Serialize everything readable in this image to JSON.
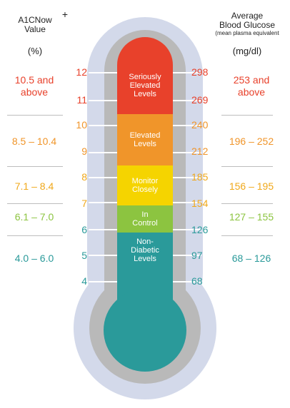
{
  "header": {
    "left_title": "A1CNow\nValue",
    "plus": "+",
    "left_unit": "(%)",
    "right_title": "Average\nBlood Glucose",
    "right_subtitle": "(mean plasma equivalent",
    "right_unit": "(mg/dl)"
  },
  "ticks_left": [
    "12",
    "11",
    "10",
    "9",
    "8",
    "7",
    "6",
    "5",
    "4"
  ],
  "ticks_right": [
    "298",
    "269",
    "240",
    "212",
    "185",
    "154",
    "126",
    "97",
    "68"
  ],
  "ranges": [
    {
      "a1c": "10.5 and\nabove",
      "glucose": "253 and\nabove",
      "color": "#e8412b"
    },
    {
      "a1c": "8.5 – 10.4",
      "glucose": "196 – 252",
      "color": "#f0952a"
    },
    {
      "a1c": "7.1 – 8.4",
      "glucose": "156 – 195",
      "color": "#f0a81a"
    },
    {
      "a1c": "6.1 – 7.0",
      "glucose": "127 – 155",
      "color": "#8cc440"
    },
    {
      "a1c": "4.0 – 6.0",
      "glucose": "68 – 126",
      "color": "#2a9a9a"
    }
  ],
  "segments": [
    {
      "label": "Seriously\nElevated\nLevels",
      "color": "#e8412b"
    },
    {
      "label": "Elevated\nLevels",
      "color": "#f0952a"
    },
    {
      "label": "Monitor\nClosely",
      "color": "#f5d400"
    },
    {
      "label": "In\nControl",
      "color": "#8cc440"
    },
    {
      "label": "Non-\nDiabetic\nLevels",
      "color": "#2a9a9a"
    }
  ],
  "tick_colors": [
    "#e8412b",
    "#e8412b",
    "#f0952a",
    "#f0952a",
    "#f0a81a",
    "#f0a81a",
    "#2a9a9a",
    "#2a9a9a",
    "#2a9a9a"
  ],
  "thermometer": {
    "outer": "#d3d9ea",
    "inner": "#b9b9b9",
    "bulb": "#2a9a9a"
  }
}
